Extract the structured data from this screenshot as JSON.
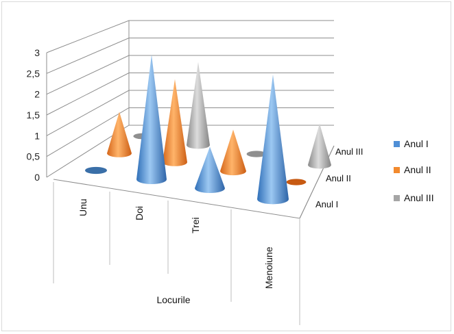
{
  "chart_data": {
    "type": "3d-cone",
    "title": "",
    "xlabel": "Locurile",
    "categories": [
      "Unu",
      "Doi",
      "Trei",
      "Menoiune"
    ],
    "series": [
      {
        "name": "Anul I",
        "values": [
          0,
          3,
          1,
          3
        ],
        "color": "#4f8fd6"
      },
      {
        "name": "Anul II",
        "values": [
          1,
          2,
          1,
          0
        ],
        "color": "#f28a2e"
      },
      {
        "name": "Anul III",
        "values": [
          0,
          2,
          0,
          1
        ],
        "color": "#a5a5a5"
      }
    ],
    "yticks": [
      "0",
      "0,5",
      "1",
      "1,5",
      "2",
      "2,5",
      "3"
    ],
    "ylim": [
      0,
      3
    ],
    "depth_labels": [
      "Anul I",
      "Anul II",
      "Anul III"
    ],
    "legend": [
      "Anul I",
      "Anul II",
      "Anul III"
    ],
    "legend_position": "right",
    "grid": true
  }
}
